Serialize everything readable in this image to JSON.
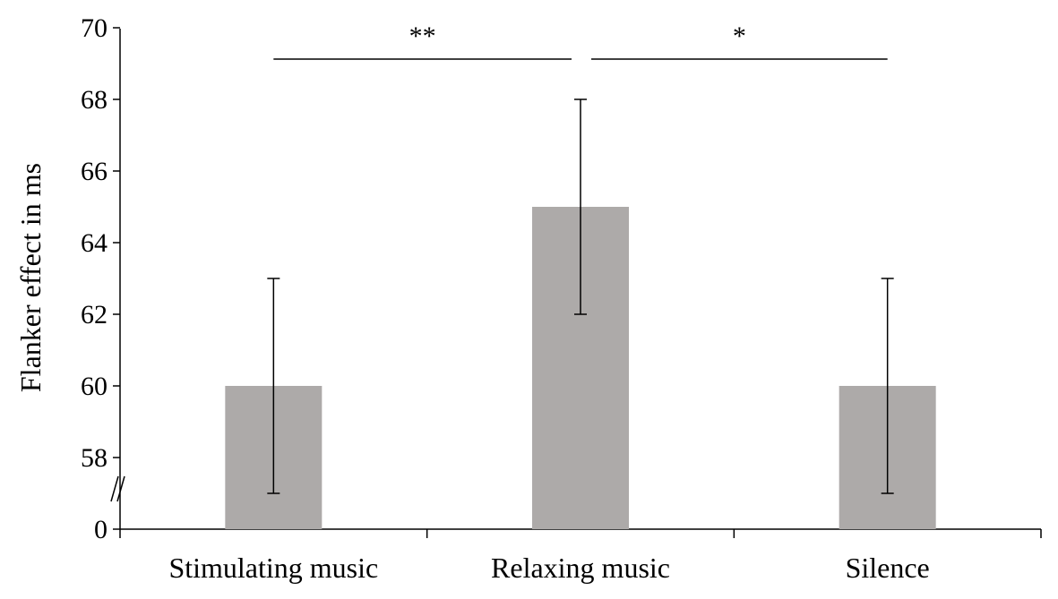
{
  "chart_data": {
    "type": "bar",
    "ylabel": "Flanker effect in ms",
    "categories": [
      "Stimulating music",
      "Relaxing music",
      "Silence"
    ],
    "values": [
      60,
      65,
      60
    ],
    "error_low": [
      57,
      62,
      57
    ],
    "error_high": [
      63,
      68,
      63
    ],
    "ylim": [
      0,
      70
    ],
    "axis_break": true,
    "y_ticks": [
      0,
      58,
      60,
      62,
      64,
      66,
      68,
      70
    ],
    "y_ticks_labels": [
      "0",
      "58",
      "60",
      "62",
      "64",
      "66",
      "68",
      "70"
    ],
    "bar_color": "#adaaa9",
    "grid": false,
    "significance": [
      {
        "from": 0,
        "to": 1,
        "label": "**"
      },
      {
        "from": 1,
        "to": 2,
        "label": "*"
      }
    ]
  }
}
